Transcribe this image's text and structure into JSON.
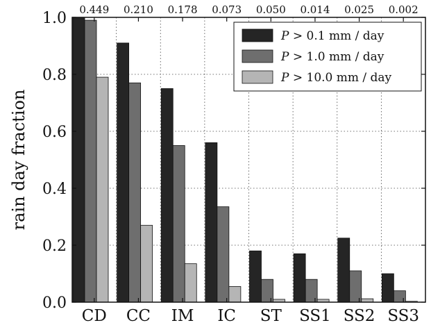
{
  "chart_data": {
    "type": "bar",
    "categories": [
      "CD",
      "CC",
      "IM",
      "IC",
      "ST",
      "SS1",
      "SS2",
      "SS3"
    ],
    "top_labels": [
      "0.449",
      "0.210",
      "0.178",
      "0.073",
      "0.050",
      "0.014",
      "0.025",
      "0.002"
    ],
    "series": [
      {
        "name": "P > 0.1 mm / day",
        "values": [
          1.0,
          0.91,
          0.75,
          0.56,
          0.18,
          0.17,
          0.225,
          0.1
        ],
        "color": "#252525"
      },
      {
        "name": "P > 1.0 mm / day",
        "values": [
          0.99,
          0.77,
          0.55,
          0.335,
          0.08,
          0.08,
          0.11,
          0.04
        ],
        "color": "#6e6e6e"
      },
      {
        "name": "P > 10.0 mm / day",
        "values": [
          0.79,
          0.27,
          0.135,
          0.055,
          0.01,
          0.01,
          0.012,
          0.003
        ],
        "color": "#b5b5b5"
      }
    ],
    "ylabel": "rain day fraction",
    "xlabel": "",
    "title": "",
    "ylim": [
      0,
      1.0
    ],
    "yticks": [
      "0.0",
      "0.2",
      "0.4",
      "0.6",
      "0.8",
      "1.0"
    ],
    "grid": true,
    "legend_position": "top-right"
  }
}
